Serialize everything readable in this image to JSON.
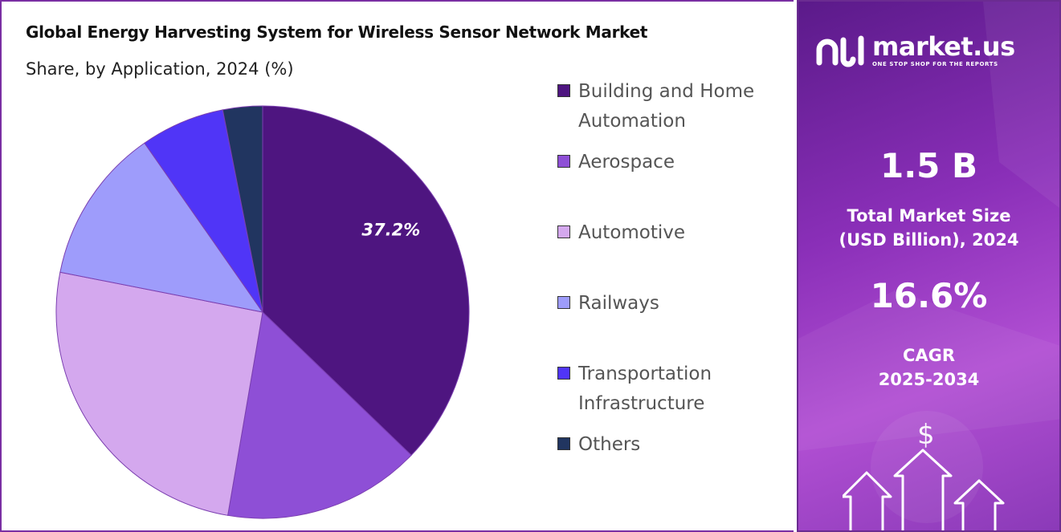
{
  "title": "Global Energy Harvesting System for Wireless Sensor Network Market",
  "subtitle": "Share, by Application, 2024 (%)",
  "chart_data": {
    "type": "pie",
    "title": "Global Energy Harvesting System for Wireless Sensor Network Market",
    "subtitle": "Share, by Application, 2024 (%)",
    "categories": [
      "Building and Home Automation",
      "Aerospace",
      "Automotive",
      "Railways",
      "Transportation Infrastructure",
      "Others"
    ],
    "values": [
      37.2,
      15.5,
      25.4,
      12.2,
      6.6,
      3.1
    ],
    "colors": [
      "#4e1580",
      "#8e4fd6",
      "#d4a8ee",
      "#9e9cfb",
      "#5035f7",
      "#213560"
    ],
    "data_labels": [
      "37.2%",
      "",
      "",
      "",
      "",
      ""
    ],
    "legend_position": "right"
  },
  "legend": [
    {
      "label": "Building and Home Automation",
      "color": "#4e1580"
    },
    {
      "label": "Aerospace",
      "color": "#8e4fd6"
    },
    {
      "label": "Automotive",
      "color": "#d4a8ee"
    },
    {
      "label": "Railways",
      "color": "#9e9cfb"
    },
    {
      "label": "Transportation Infrastructure",
      "color": "#5035f7"
    },
    {
      "label": "Others",
      "color": "#213560"
    }
  ],
  "brand": {
    "name": "market.us",
    "tagline": "ONE STOP SHOP FOR THE REPORTS"
  },
  "stats": {
    "market_size_value": "1.5 B",
    "market_size_label_1": "Total Market Size",
    "market_size_label_2": "(USD Billion), 2024",
    "cagr_value": "16.6%",
    "cagr_label_1": "CAGR",
    "cagr_label_2": "2025-2034"
  },
  "icons": {
    "dollar": "$",
    "logo": "market-us-logo-icon",
    "growth": "growth-arrows-icon"
  }
}
